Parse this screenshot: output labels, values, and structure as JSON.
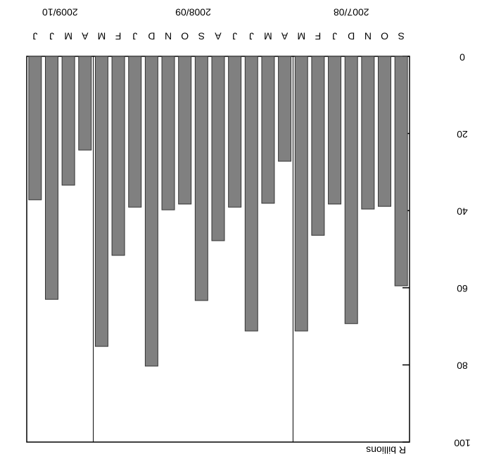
{
  "chart_data": {
    "type": "bar",
    "ylabel": "R billions",
    "color": "#808080",
    "ylim": [
      0,
      100
    ],
    "yticks": [
      0,
      20,
      40,
      60,
      80,
      100
    ],
    "groups": [
      {
        "label": "2007/08",
        "categories": [
          "S",
          "O",
          "N",
          "D",
          "J",
          "F",
          "M"
        ],
        "values": [
          59.5,
          38.9,
          39.6,
          69.3,
          38.3,
          46.4,
          71.2
        ]
      },
      {
        "label": "2008/09",
        "categories": [
          "A",
          "M",
          "J",
          "J",
          "A",
          "S",
          "O",
          "N",
          "D",
          "J",
          "F",
          "M"
        ],
        "values": [
          27.2,
          38.1,
          71.2,
          39.1,
          47.8,
          63.3,
          38.3,
          39.8,
          80.3,
          39.1,
          51.6,
          75.2
        ]
      },
      {
        "label": "2009/10",
        "categories": [
          "A",
          "M",
          "J",
          "J"
        ],
        "values": [
          24.3,
          33.4,
          63.0,
          37.2
        ]
      }
    ]
  }
}
